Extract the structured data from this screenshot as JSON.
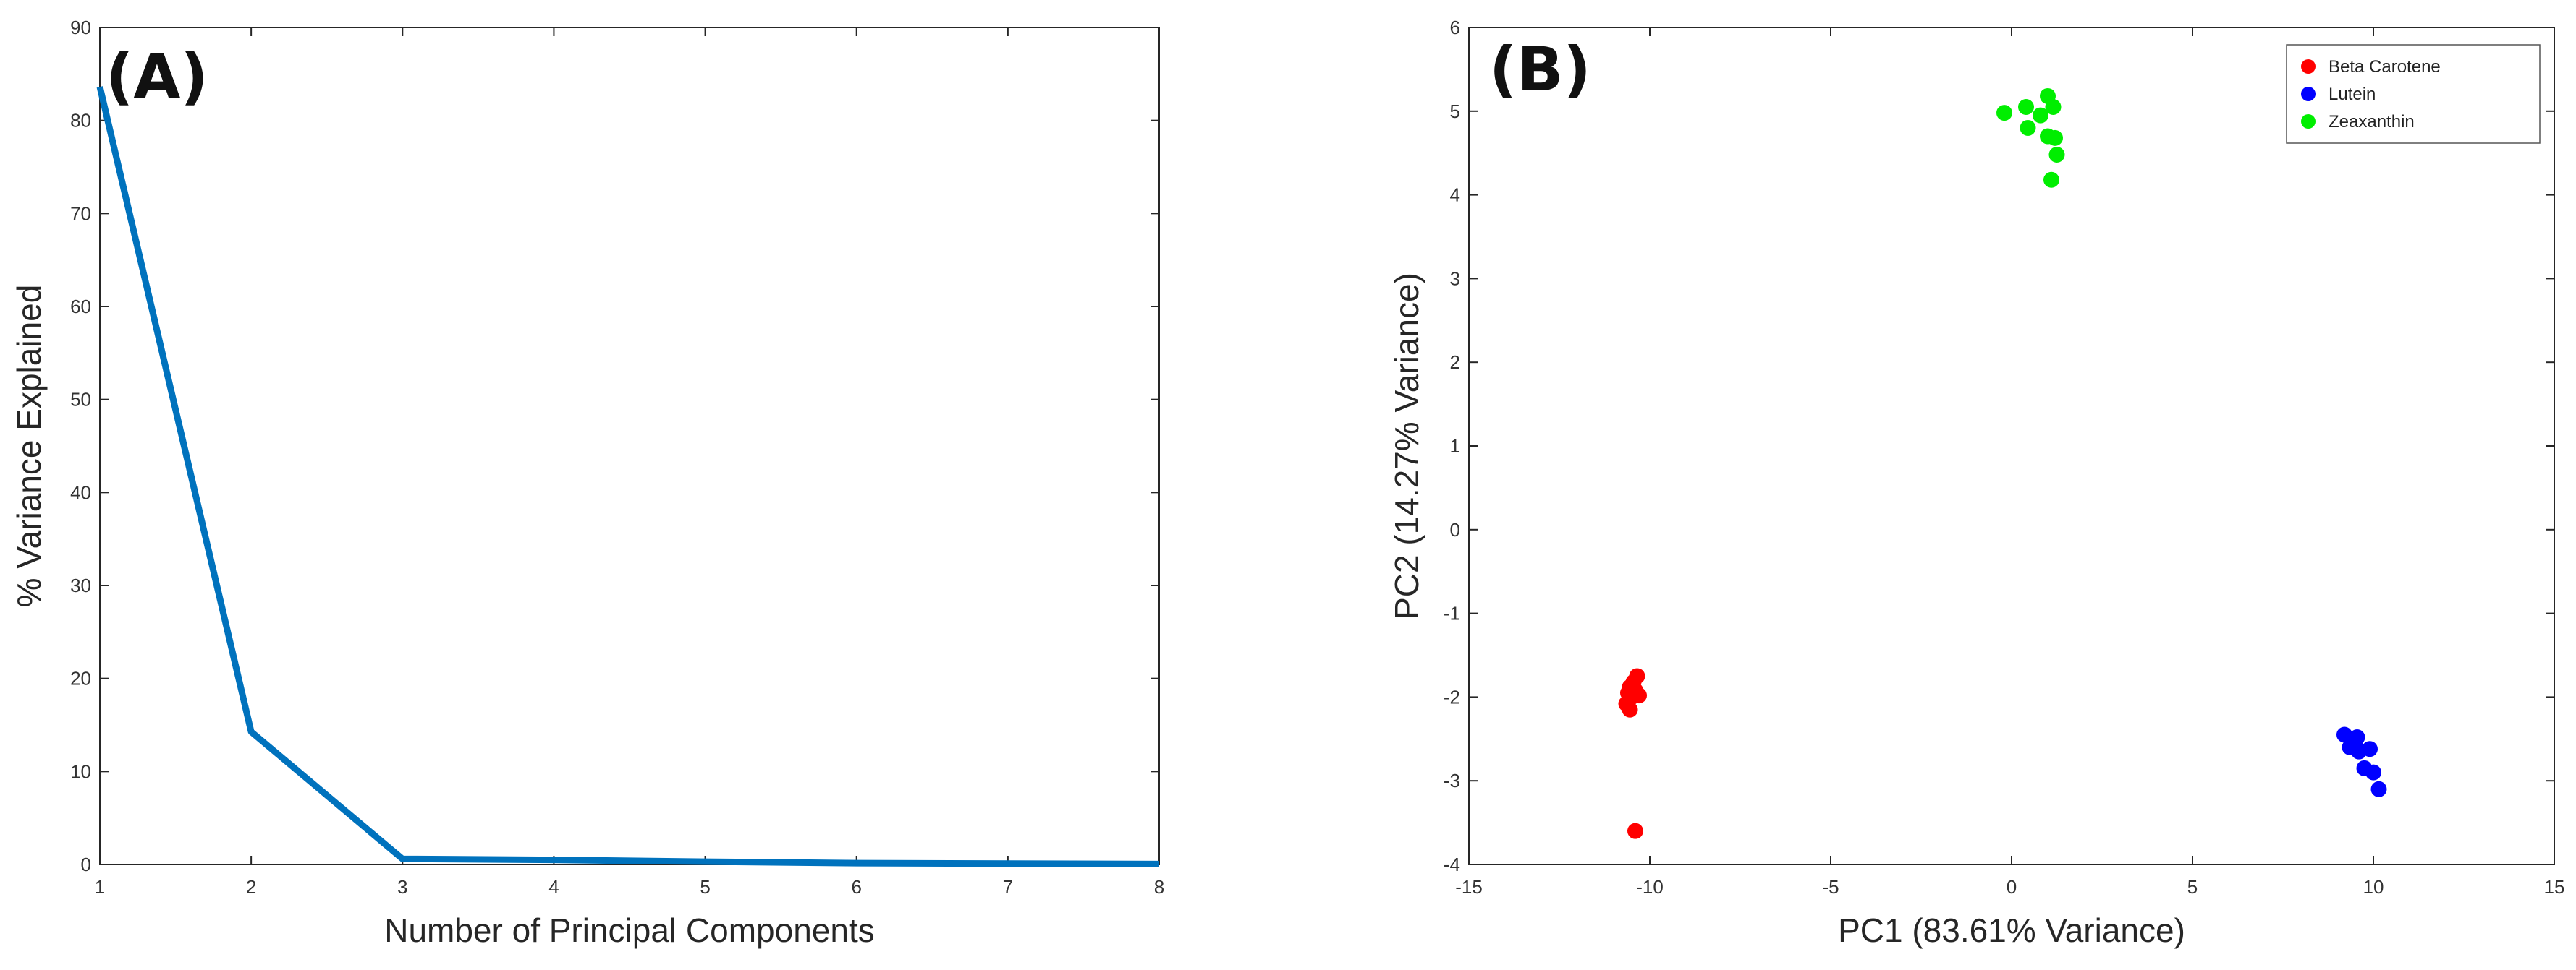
{
  "chart_data": [
    {
      "type": "line",
      "panel_label": "(A)",
      "title": "",
      "xlabel": "Number of Principal Components",
      "ylabel": "% Variance Explained",
      "xlim": [
        1,
        8
      ],
      "ylim": [
        0,
        90
      ],
      "xticks": [
        1,
        2,
        3,
        4,
        5,
        6,
        7,
        8
      ],
      "yticks": [
        0,
        10,
        20,
        30,
        40,
        50,
        60,
        70,
        80,
        90
      ],
      "grid": false,
      "series": [
        {
          "color": "#0072BD",
          "x": [
            1,
            2,
            3,
            4,
            5,
            6,
            7,
            8
          ],
          "y": [
            83.61,
            14.27,
            0.6,
            0.5,
            0.3,
            0.15,
            0.1,
            0.05
          ]
        }
      ]
    },
    {
      "type": "scatter",
      "panel_label": "(B)",
      "title": "",
      "xlabel": "PC1 (83.61% Variance)",
      "ylabel": "PC2 (14.27% Variance)",
      "xlim": [
        -15,
        15
      ],
      "ylim": [
        -4,
        6
      ],
      "xticks": [
        -15,
        -10,
        -5,
        0,
        5,
        10,
        15
      ],
      "yticks": [
        -4,
        -3,
        -2,
        -1,
        0,
        1,
        2,
        3,
        4,
        5,
        6
      ],
      "grid": false,
      "legend_position": "top-right",
      "series": [
        {
          "name": "Beta Carotene",
          "color": "#ff0000",
          "x": [
            -10.35,
            -10.45,
            -10.55,
            -10.6,
            -10.5,
            -10.65,
            -10.4,
            -10.3,
            -10.55,
            -10.4
          ],
          "y": [
            -1.75,
            -1.82,
            -1.88,
            -1.95,
            -2.0,
            -2.08,
            -1.92,
            -1.98,
            -2.15,
            -3.6
          ]
        },
        {
          "name": "Lutein",
          "color": "#0000ff",
          "x": [
            9.2,
            9.4,
            9.55,
            9.35,
            9.6,
            9.9,
            9.75,
            10.0,
            10.15,
            9.5
          ],
          "y": [
            -2.45,
            -2.5,
            -2.48,
            -2.6,
            -2.65,
            -2.62,
            -2.85,
            -2.9,
            -3.1,
            -2.55
          ]
        },
        {
          "name": "Zeaxanthin",
          "color": "#00ee00",
          "x": [
            -0.2,
            0.4,
            1.0,
            1.15,
            0.45,
            1.0,
            1.2,
            1.25,
            1.1,
            0.8
          ],
          "y": [
            4.98,
            5.05,
            5.18,
            5.05,
            4.8,
            4.7,
            4.68,
            4.48,
            4.18,
            4.95
          ]
        }
      ]
    }
  ]
}
